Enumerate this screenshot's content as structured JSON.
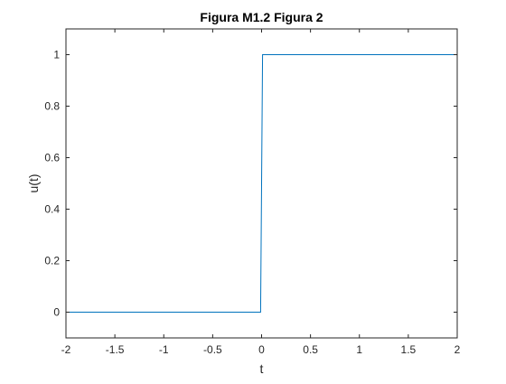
{
  "chart_data": {
    "type": "line",
    "title": "Figura M1.2 Figura 2",
    "xlabel": "t",
    "ylabel": "u(t)",
    "xlim": [
      -2,
      2
    ],
    "ylim": [
      -0.1,
      1.1
    ],
    "xticks": [
      -2,
      -1.5,
      -1,
      -0.5,
      0,
      0.5,
      1,
      1.5,
      2
    ],
    "xtick_labels": [
      "-2",
      "-1.5",
      "-1",
      "-0.5",
      "0",
      "0.5",
      "1",
      "1.5",
      "2"
    ],
    "yticks": [
      0,
      0.2,
      0.4,
      0.6,
      0.8,
      1
    ],
    "ytick_labels": [
      "0",
      "0.2",
      "0.4",
      "0.6",
      "0.8",
      "1"
    ],
    "grid": false,
    "box": true,
    "series": [
      {
        "color": "#0072bd",
        "x": [
          -2,
          -0.01,
          0.01,
          2
        ],
        "y": [
          0,
          0,
          1,
          1
        ]
      }
    ]
  }
}
